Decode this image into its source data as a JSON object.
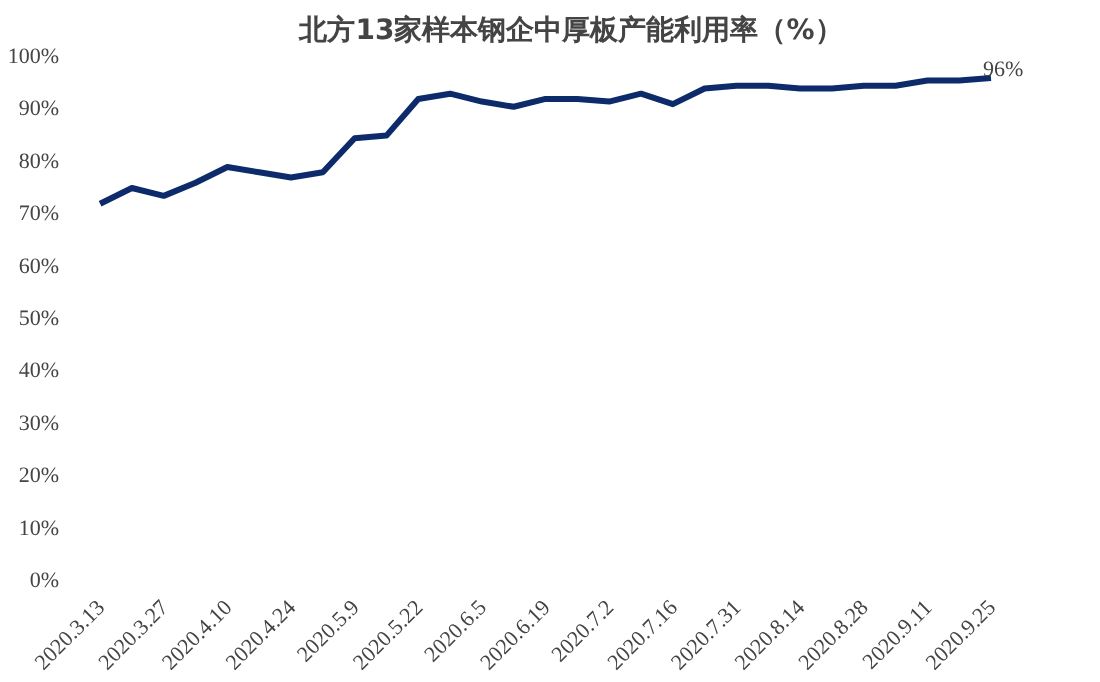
{
  "chart_data": {
    "type": "line",
    "title": "北方13家样本钢企中厚板产能利用率（%）",
    "categories": [
      "2020.3.13",
      null,
      "2020.3.27",
      null,
      "2020.4.10",
      null,
      "2020.4.24",
      null,
      "2020.5.9",
      null,
      "2020.5.22",
      null,
      "2020.6.5",
      null,
      "2020.6.19",
      null,
      "2020.7.2",
      null,
      "2020.7.16",
      null,
      "2020.7.31",
      null,
      "2020.8.14",
      null,
      "2020.8.28",
      null,
      "2020.9.11",
      null,
      "2020.9.25"
    ],
    "series": [
      {
        "color": "#0d2b6b",
        "values": [
          72,
          75,
          73.5,
          76,
          79,
          78,
          77,
          78,
          84.5,
          85,
          92,
          93,
          91.5,
          90.5,
          92,
          92,
          91.5,
          93,
          91,
          94,
          94.5,
          94.5,
          94,
          94,
          94.5,
          94.5,
          95.5,
          95.5,
          96
        ],
        "value_labels": [
          null,
          null,
          null,
          null,
          null,
          null,
          null,
          null,
          null,
          null,
          null,
          null,
          null,
          null,
          null,
          null,
          null,
          null,
          null,
          null,
          null,
          null,
          null,
          null,
          null,
          null,
          null,
          null,
          "96%"
        ]
      }
    ],
    "ylim": [
      0,
      100
    ],
    "yticks": [
      {
        "value": 0,
        "label": "0%"
      },
      {
        "value": 10,
        "label": "10%"
      },
      {
        "value": 20,
        "label": "20%"
      },
      {
        "value": 30,
        "label": "30%"
      },
      {
        "value": 40,
        "label": "40%"
      },
      {
        "value": 50,
        "label": "50%"
      },
      {
        "value": 60,
        "label": "60%"
      },
      {
        "value": 70,
        "label": "70%"
      },
      {
        "value": 80,
        "label": "80%"
      },
      {
        "value": 90,
        "label": "90%"
      },
      {
        "value": 100,
        "label": "100%"
      }
    ],
    "grid": false,
    "marker": "none",
    "line_style": "solid"
  }
}
